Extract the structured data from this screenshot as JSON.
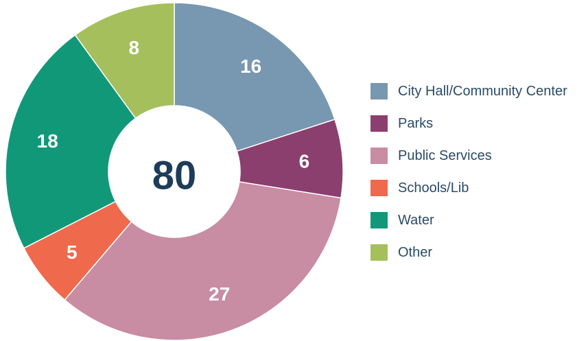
{
  "chart_data": {
    "type": "pie",
    "donut": true,
    "categories": [
      "City Hall/Community Center",
      "Parks",
      "Public Services",
      "Schools/Lib",
      "Water",
      "Other"
    ],
    "values": [
      16,
      6,
      27,
      5,
      18,
      8
    ],
    "colors": [
      "#7897b0",
      "#8b3f6e",
      "#c88ca3",
      "#ef6a4c",
      "#119879",
      "#a4bf5c"
    ],
    "total": 80,
    "legend": "right"
  }
}
